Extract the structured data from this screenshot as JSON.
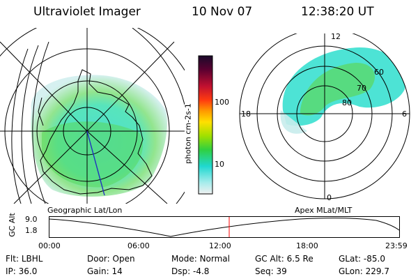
{
  "header": {
    "title": "Ultraviolet Imager",
    "date": "10 Nov 07",
    "time": "12:38:20 UT"
  },
  "colorbar": {
    "label": "photon cm-2s-1",
    "ticks": [
      "100",
      "10"
    ]
  },
  "polar_plot": {
    "mlt_labels": {
      "top": "12",
      "left": "18",
      "right": "6",
      "bottom": "0"
    },
    "lat_labels": [
      "60",
      "70",
      "80"
    ]
  },
  "timeline": {
    "left_title": "Geographic Lat/Lon",
    "right_title": "Apex MLat/MLT",
    "y_axis_label": "GC Alt",
    "y_ticks": [
      "9.0",
      "1.8"
    ],
    "x_ticks": [
      "00:00",
      "06:00",
      "12:00",
      "18:00",
      "23:59"
    ],
    "current_marker_color": "#ff0000"
  },
  "footer": {
    "row1": [
      {
        "label": "Flt:",
        "value": "LBHL"
      },
      {
        "label": "Door:",
        "value": "Open"
      },
      {
        "label": "Mode:",
        "value": "Normal"
      },
      {
        "label": "GC Alt:",
        "value": "6.5 Re"
      },
      {
        "label": "GLat:",
        "value": "-85.0"
      }
    ],
    "row2": [
      {
        "label": "IP:",
        "value": "36.0"
      },
      {
        "label": "Gain:",
        "value": "14"
      },
      {
        "label": "Dsp:",
        "value": "-4.8"
      },
      {
        "label": "Seq:",
        "value": "39"
      },
      {
        "label": "GLon:",
        "value": "229.7"
      }
    ]
  }
}
